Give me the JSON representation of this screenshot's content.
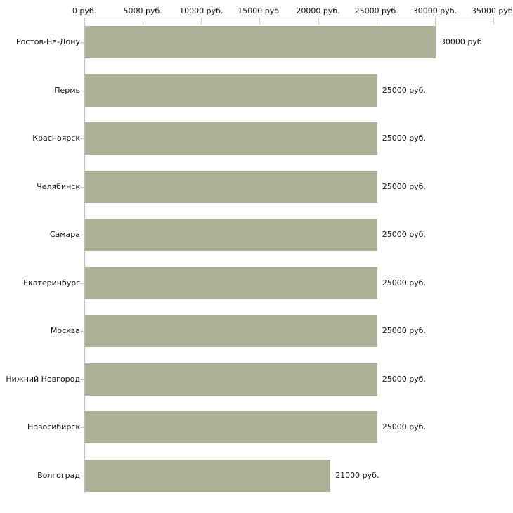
{
  "chart_data": {
    "type": "bar",
    "orientation": "horizontal",
    "title": "",
    "xlabel": "",
    "ylabel": "",
    "xlim": [
      0,
      35000
    ],
    "grid": false,
    "legend": null,
    "categories": [
      "Ростов-На-Дону",
      "Пермь",
      "Красноярск",
      "Челябинск",
      "Самара",
      "Екатеринбург",
      "Москва",
      "Нижний Новгород",
      "Новосибирск",
      "Волгоград"
    ],
    "values": [
      30000,
      25000,
      25000,
      25000,
      25000,
      25000,
      25000,
      25000,
      25000,
      21000
    ],
    "value_labels": [
      "30000 руб.",
      "25000 руб.",
      "25000 руб.",
      "25000 руб.",
      "25000 руб.",
      "25000 руб.",
      "25000 руб.",
      "25000 руб.",
      "25000 руб.",
      "21000 руб."
    ],
    "x_ticks": [
      {
        "value": 0,
        "label": "0 руб."
      },
      {
        "value": 5000,
        "label": "5000 руб."
      },
      {
        "value": 10000,
        "label": "10000 руб."
      },
      {
        "value": 15000,
        "label": "15000 руб."
      },
      {
        "value": 20000,
        "label": "20000 руб."
      },
      {
        "value": 25000,
        "label": "25000 руб."
      },
      {
        "value": 30000,
        "label": "30000 руб."
      },
      {
        "value": 35000,
        "label": "35000 руб."
      }
    ],
    "colors": {
      "bar": "#abb197",
      "axis": "#bdbdbd",
      "tick": "#c8c9a3",
      "text": "#111111",
      "background": "#ffffff"
    }
  }
}
